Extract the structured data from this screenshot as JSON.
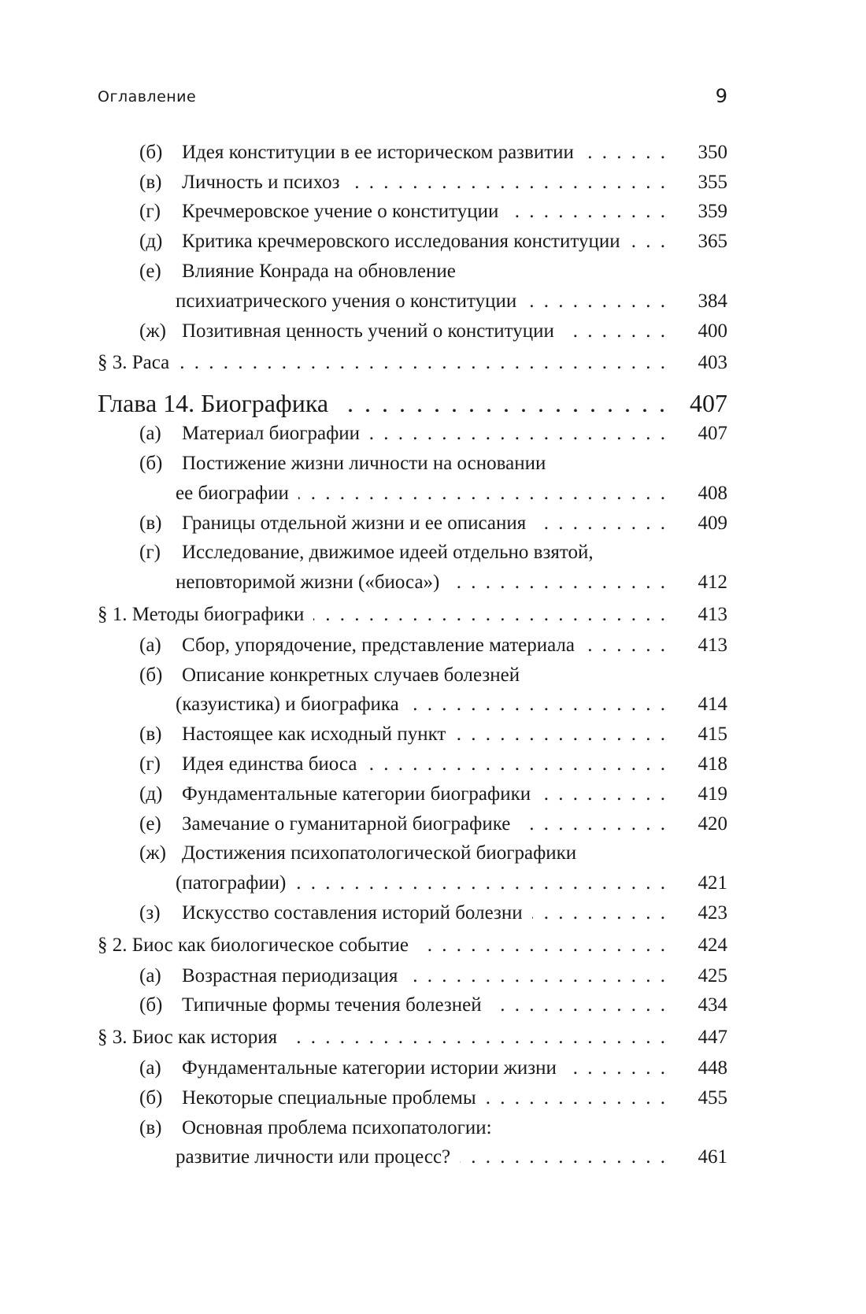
{
  "header": {
    "title": "Оглавление",
    "page_number": "9"
  },
  "entries": [
    {
      "type": "sub",
      "prefix": "(б)",
      "lines": [
        "Идея конституции в ее историческом развитии"
      ],
      "page": "350"
    },
    {
      "type": "sub",
      "prefix": "(в)",
      "lines": [
        "Личность и психоз"
      ],
      "page": "355"
    },
    {
      "type": "sub",
      "prefix": "(г)",
      "lines": [
        "Кречмеровское учение о конституции"
      ],
      "page": "359"
    },
    {
      "type": "sub",
      "prefix": "(д)",
      "lines": [
        "Критика кречмеровского исследования конституции"
      ],
      "page": "365"
    },
    {
      "type": "sub",
      "prefix": "(е)",
      "lines": [
        "Влияние Конрада на обновление",
        "психиатрического учения о конституции"
      ],
      "page": "384"
    },
    {
      "type": "sub",
      "prefix": "(ж)",
      "lines": [
        "Позитивная ценность учений о конституции"
      ],
      "page": "400"
    },
    {
      "type": "section",
      "prefix": "",
      "lines": [
        "§ 3. Раса"
      ],
      "page": "403"
    },
    {
      "type": "chapter",
      "prefix": "",
      "lines": [
        "Глава 14. Биографика"
      ],
      "page": "407"
    },
    {
      "type": "sub",
      "prefix": "(а)",
      "lines": [
        "Материал биографии"
      ],
      "page": "407"
    },
    {
      "type": "sub",
      "prefix": "(б)",
      "lines": [
        "Постижение жизни личности на основании",
        "ее биографии"
      ],
      "page": "408"
    },
    {
      "type": "sub",
      "prefix": "(в)",
      "lines": [
        "Границы отдельной жизни и ее описания"
      ],
      "page": "409"
    },
    {
      "type": "sub",
      "prefix": "(г)",
      "lines": [
        "Исследование, движимое идеей отдельно взятой,",
        "неповторимой жизни («биоса»)"
      ],
      "page": "412"
    },
    {
      "type": "section",
      "prefix": "",
      "lines": [
        "§ 1. Методы биографики"
      ],
      "page": "413"
    },
    {
      "type": "sub",
      "prefix": "(а)",
      "lines": [
        "Сбор, упорядочение, представление материала"
      ],
      "page": "413"
    },
    {
      "type": "sub",
      "prefix": "(б)",
      "lines": [
        "Описание конкретных случаев болезней",
        "(казуистика) и биографика"
      ],
      "page": "414"
    },
    {
      "type": "sub",
      "prefix": "(в)",
      "lines": [
        "Настоящее как исходный пункт"
      ],
      "page": "415"
    },
    {
      "type": "sub",
      "prefix": "(г)",
      "lines": [
        "Идея единства биоса"
      ],
      "page": "418"
    },
    {
      "type": "sub",
      "prefix": "(д)",
      "lines": [
        "Фундаментальные категории биографики"
      ],
      "page": "419"
    },
    {
      "type": "sub",
      "prefix": "(е)",
      "lines": [
        "Замечание о гуманитарной биографике"
      ],
      "page": "420"
    },
    {
      "type": "sub",
      "prefix": "(ж)",
      "lines": [
        "Достижения психопатологической биографики",
        "(патографии)"
      ],
      "page": "421"
    },
    {
      "type": "sub",
      "prefix": "(з)",
      "lines": [
        "Искусство составления историй болезни"
      ],
      "page": "423"
    },
    {
      "type": "section",
      "prefix": "",
      "lines": [
        "§ 2. Биос как биологическое событие"
      ],
      "page": "424"
    },
    {
      "type": "sub",
      "prefix": "(а)",
      "lines": [
        "Возрастная периодизация"
      ],
      "page": "425"
    },
    {
      "type": "sub",
      "prefix": "(б)",
      "lines": [
        "Типичные формы течения болезней"
      ],
      "page": "434"
    },
    {
      "type": "section",
      "prefix": "",
      "lines": [
        "§ 3. Биос как история"
      ],
      "page": "447"
    },
    {
      "type": "sub",
      "prefix": "(а)",
      "lines": [
        "Фундаментальные категории истории жизни"
      ],
      "page": "448"
    },
    {
      "type": "sub",
      "prefix": "(б)",
      "lines": [
        "Некоторые специальные проблемы"
      ],
      "page": "455"
    },
    {
      "type": "sub",
      "prefix": "(в)",
      "lines": [
        "Основная проблема психопатологии:",
        "развитие личности или процесс?"
      ],
      "page": "461"
    }
  ]
}
